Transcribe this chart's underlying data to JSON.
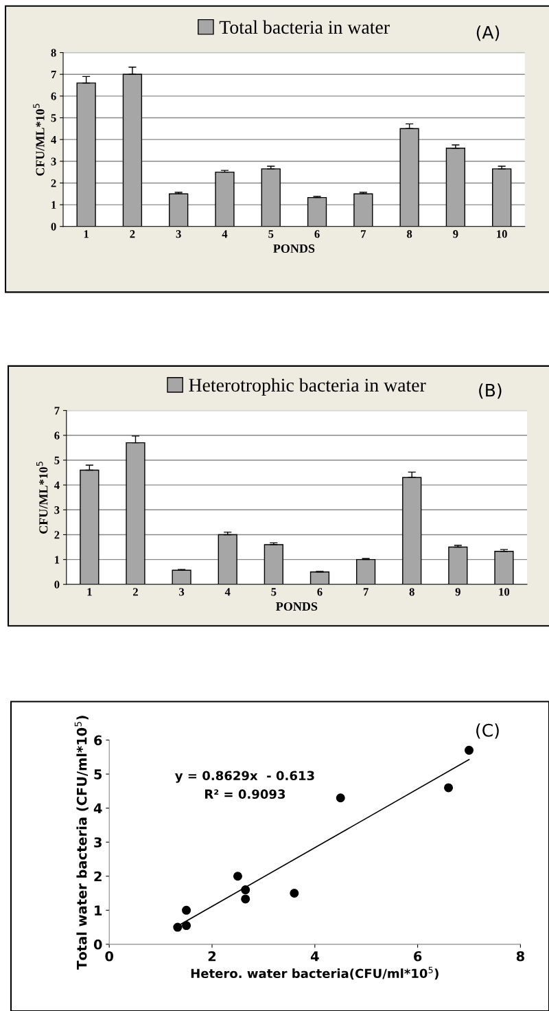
{
  "chart_data": [
    {
      "type": "bar",
      "xlabel": "PONDS",
      "ylabel": "CFU/ML*10$^{5}$",
      "categories": [
        "1",
        "2",
        "3",
        "4",
        "5",
        "6",
        "7",
        "8",
        "9",
        "10"
      ],
      "series": [
        {
          "name": "Total bacteria in water",
          "color": "#a6a6a6",
          "values": [
            6.6,
            7.0,
            1.5,
            2.5,
            2.65,
            1.33,
            1.5,
            4.5,
            3.6,
            2.65
          ],
          "errors": [
            [
              6.6,
              6.9
            ],
            [
              7.0,
              7.33
            ],
            [
              1.5,
              1.57
            ],
            [
              2.5,
              2.58
            ],
            [
              2.65,
              2.77
            ],
            [
              1.33,
              1.38
            ],
            [
              1.5,
              1.57
            ],
            [
              4.5,
              4.72
            ],
            [
              3.6,
              3.75
            ],
            [
              2.65,
              2.77
            ]
          ]
        }
      ],
      "ylim": [
        0,
        8
      ],
      "yticks": [
        0,
        1,
        2,
        3,
        4,
        5,
        6,
        7,
        8
      ],
      "grid": "y",
      "legend": "top",
      "annotations": [
        "(A)"
      ]
    },
    {
      "type": "bar",
      "xlabel": "PONDS",
      "ylabel": "CFU/ML*10$^{5}$",
      "categories": [
        "1",
        "2",
        "3",
        "4",
        "5",
        "6",
        "7",
        "8",
        "9",
        "10"
      ],
      "series": [
        {
          "name": "Heterotrophic bacteria in water",
          "color": "#a6a6a6",
          "values": [
            4.6,
            5.7,
            0.57,
            2.0,
            1.6,
            0.5,
            1.0,
            4.3,
            1.5,
            1.33
          ],
          "errors": [
            [
              4.6,
              4.8
            ],
            [
              5.7,
              5.97
            ],
            [
              0.57,
              0.6
            ],
            [
              2.0,
              2.1
            ],
            [
              1.6,
              1.67
            ],
            [
              0.5,
              0.52
            ],
            [
              1.0,
              1.04
            ],
            [
              4.3,
              4.52
            ],
            [
              1.5,
              1.57
            ],
            [
              1.33,
              1.4
            ]
          ]
        }
      ],
      "ylim": [
        0,
        7
      ],
      "yticks": [
        0,
        1,
        2,
        3,
        4,
        5,
        6,
        7
      ],
      "grid": "y",
      "legend": "top",
      "annotations": [
        "(B)"
      ]
    },
    {
      "type": "scatter",
      "xlabel": "Hetero. water bacteria(CFU/ml*10$^{5}$)",
      "ylabel": "Total water bacteria (CFU/ml*10$^{5}$)",
      "x": [
        1.33,
        1.5,
        1.5,
        2.5,
        2.65,
        2.65,
        3.6,
        4.5,
        6.6,
        7.0
      ],
      "series": [
        {
          "color": "#000000",
          "values": [
            0.5,
            0.55,
            1.0,
            2.0,
            1.6,
            1.33,
            1.5,
            4.3,
            4.6,
            5.7
          ],
          "marker": "circle"
        },
        {
          "type": "line",
          "color": "#000000",
          "x": [
            1.33,
            7.0
          ],
          "values": [
            0.535,
            5.427
          ],
          "line_style": "solid",
          "marker": "none"
        }
      ],
      "xlim": [
        0,
        8
      ],
      "xticks": [
        0,
        2,
        4,
        6,
        8
      ],
      "ylim": [
        0,
        6
      ],
      "yticks": [
        0,
        1,
        2,
        3,
        4,
        5,
        6
      ],
      "grid": false,
      "legend": false,
      "annotations": [
        "(C)",
        "y = 0.8629x  - 0.613",
        "R² = 0.9093"
      ]
    }
  ]
}
